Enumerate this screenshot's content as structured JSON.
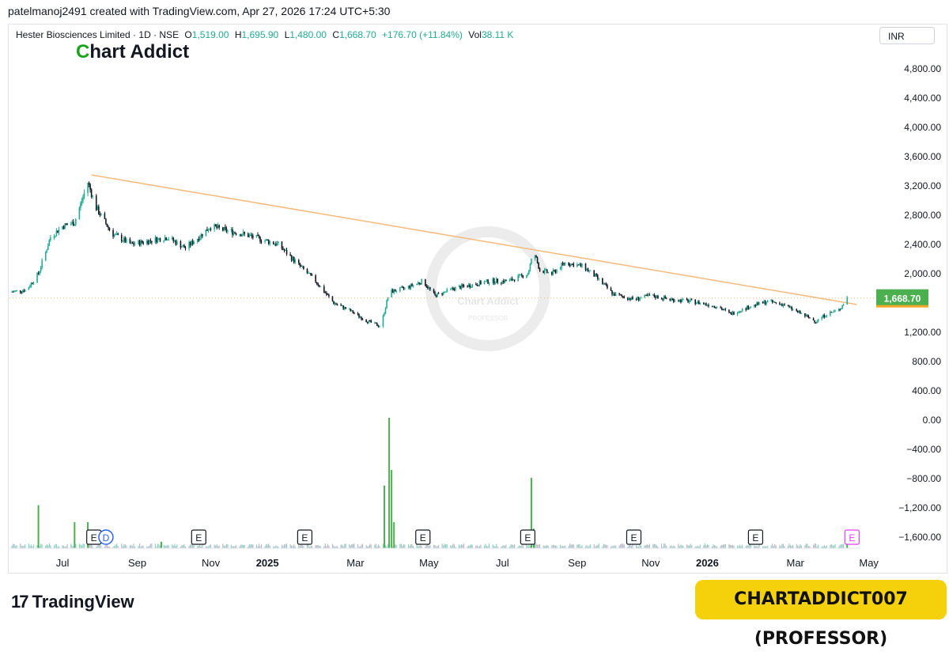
{
  "header": {
    "attribution": "patelmanoj2491 created with TradingView.com, Apr 27, 2026 17:24 UTC+5:30"
  },
  "legend": {
    "symbol": "Hester Biosciences Limited · 1D · NSE",
    "o_label": "O",
    "o_value": "1,519.00",
    "h_label": "H",
    "h_value": "1,695.90",
    "l_label": "L",
    "l_value": "1,480.00",
    "c_label": "C",
    "c_value": "1,668.70",
    "change": "+176.70 (+11.84%)",
    "vol_label": "Vol",
    "vol_value": "38.11 K"
  },
  "logo": {
    "text_c": "C",
    "text_rest": "hart Addict"
  },
  "watermark": {
    "line1": "Chart Addict",
    "line2": "PROFESSOR"
  },
  "currency": "INR",
  "footer": {
    "tv_brand": "TradingView",
    "tv_mark": "17",
    "badge": "CHARTADDICT007 (PROFESSOR)"
  },
  "colors": {
    "up": "#22ab94",
    "down": "#131722",
    "trendline": "#f5b97a",
    "price_tag": "#4caf50",
    "event_d": "#2962ff",
    "event_e_pink": "#e040fb"
  },
  "chart_data": {
    "type": "candlestick",
    "title": "Hester Biosciences Limited · 1D · NSE",
    "y_axis": {
      "ticks": [
        "4,800.00",
        "4,400.00",
        "4,000.00",
        "3,600.00",
        "3,200.00",
        "2,800.00",
        "2,400.00",
        "2,000.00",
        "1,200.00",
        "800.00",
        "400.00",
        "0.00",
        "−400.00",
        "−800.00",
        "−1,200.00",
        "−1,600.00"
      ],
      "tick_values": [
        4800,
        4400,
        4000,
        3600,
        3200,
        2800,
        2400,
        2000,
        1200,
        800,
        400,
        0,
        -400,
        -800,
        -1200,
        -1600
      ]
    },
    "x_axis": {
      "labels": [
        "Jul",
        "Sep",
        "Nov",
        "2025",
        "Mar",
        "May",
        "Jul",
        "Sep",
        "Nov",
        "2026",
        "Mar",
        "May"
      ],
      "bold": [
        "2025",
        "2026"
      ]
    },
    "last_price": "1,668.70",
    "last_price_value": 1668.7,
    "trendline": {
      "from": [
        "2024-08",
        3350
      ],
      "to": [
        "2026-05",
        1580
      ]
    },
    "price_path": [
      [
        "2024-06-01",
        1750
      ],
      [
        "2024-06-15",
        1780
      ],
      [
        "2024-06-25",
        2000
      ],
      [
        "2024-07-05",
        2500
      ],
      [
        "2024-07-15",
        2650
      ],
      [
        "2024-07-25",
        2700
      ],
      [
        "2024-08-05",
        3250
      ],
      [
        "2024-08-12",
        2900
      ],
      [
        "2024-08-25",
        2550
      ],
      [
        "2024-09-10",
        2400
      ],
      [
        "2024-09-25",
        2450
      ],
      [
        "2024-10-10",
        2500
      ],
      [
        "2024-10-25",
        2350
      ],
      [
        "2024-11-05",
        2500
      ],
      [
        "2024-11-15",
        2650
      ],
      [
        "2024-11-25",
        2600
      ],
      [
        "2024-12-10",
        2550
      ],
      [
        "2024-12-25",
        2480
      ],
      [
        "2025-01-10",
        2400
      ],
      [
        "2025-01-25",
        2150
      ],
      [
        "2025-02-10",
        1900
      ],
      [
        "2025-02-25",
        1600
      ],
      [
        "2025-03-10",
        1500
      ],
      [
        "2025-03-25",
        1350
      ],
      [
        "2025-04-05",
        1280
      ],
      [
        "2025-04-12",
        1750
      ],
      [
        "2025-04-25",
        1800
      ],
      [
        "2025-05-10",
        1900
      ],
      [
        "2025-05-20",
        1700
      ],
      [
        "2025-06-05",
        1800
      ],
      [
        "2025-06-20",
        1850
      ],
      [
        "2025-07-05",
        1900
      ],
      [
        "2025-07-20",
        1900
      ],
      [
        "2025-08-05",
        2000
      ],
      [
        "2025-08-10",
        2300
      ],
      [
        "2025-08-15",
        2050
      ],
      [
        "2025-08-25",
        2000
      ],
      [
        "2025-09-05",
        2150
      ],
      [
        "2025-09-20",
        2100
      ],
      [
        "2025-10-01",
        1950
      ],
      [
        "2025-10-15",
        1720
      ],
      [
        "2025-11-01",
        1650
      ],
      [
        "2025-11-15",
        1700
      ],
      [
        "2025-12-01",
        1650
      ],
      [
        "2025-12-20",
        1620
      ],
      [
        "2026-01-10",
        1550
      ],
      [
        "2026-01-20",
        1450
      ],
      [
        "2026-02-05",
        1550
      ],
      [
        "2026-02-20",
        1620
      ],
      [
        "2026-03-05",
        1580
      ],
      [
        "2026-03-20",
        1450
      ],
      [
        "2026-04-01",
        1350
      ],
      [
        "2026-04-10",
        1450
      ],
      [
        "2026-04-20",
        1500
      ],
      [
        "2026-04-27",
        1668.7
      ]
    ],
    "volume_spikes": [
      [
        "2024-06-25",
        0.33
      ],
      [
        "2024-07-25",
        0.2
      ],
      [
        "2024-08-05",
        0.2
      ],
      [
        "2024-10-05",
        0.05
      ],
      [
        "2025-04-08",
        0.48
      ],
      [
        "2025-04-12",
        1.0
      ],
      [
        "2025-04-14",
        0.6
      ],
      [
        "2025-04-16",
        0.2
      ],
      [
        "2025-08-08",
        0.54
      ],
      [
        "2025-08-10",
        0.15
      ],
      [
        "2026-04-27",
        0.06
      ]
    ],
    "events": [
      {
        "date": "2024-08-10",
        "label": "E"
      },
      {
        "date": "2024-08-20",
        "label": "D"
      },
      {
        "date": "2024-11-05",
        "label": "E"
      },
      {
        "date": "2025-02-01",
        "label": "E"
      },
      {
        "date": "2025-05-10",
        "label": "E"
      },
      {
        "date": "2025-08-05",
        "label": "E"
      },
      {
        "date": "2025-11-01",
        "label": "E"
      },
      {
        "date": "2026-02-10",
        "label": "E"
      },
      {
        "date": "2026-05-01",
        "label": "E"
      }
    ]
  }
}
